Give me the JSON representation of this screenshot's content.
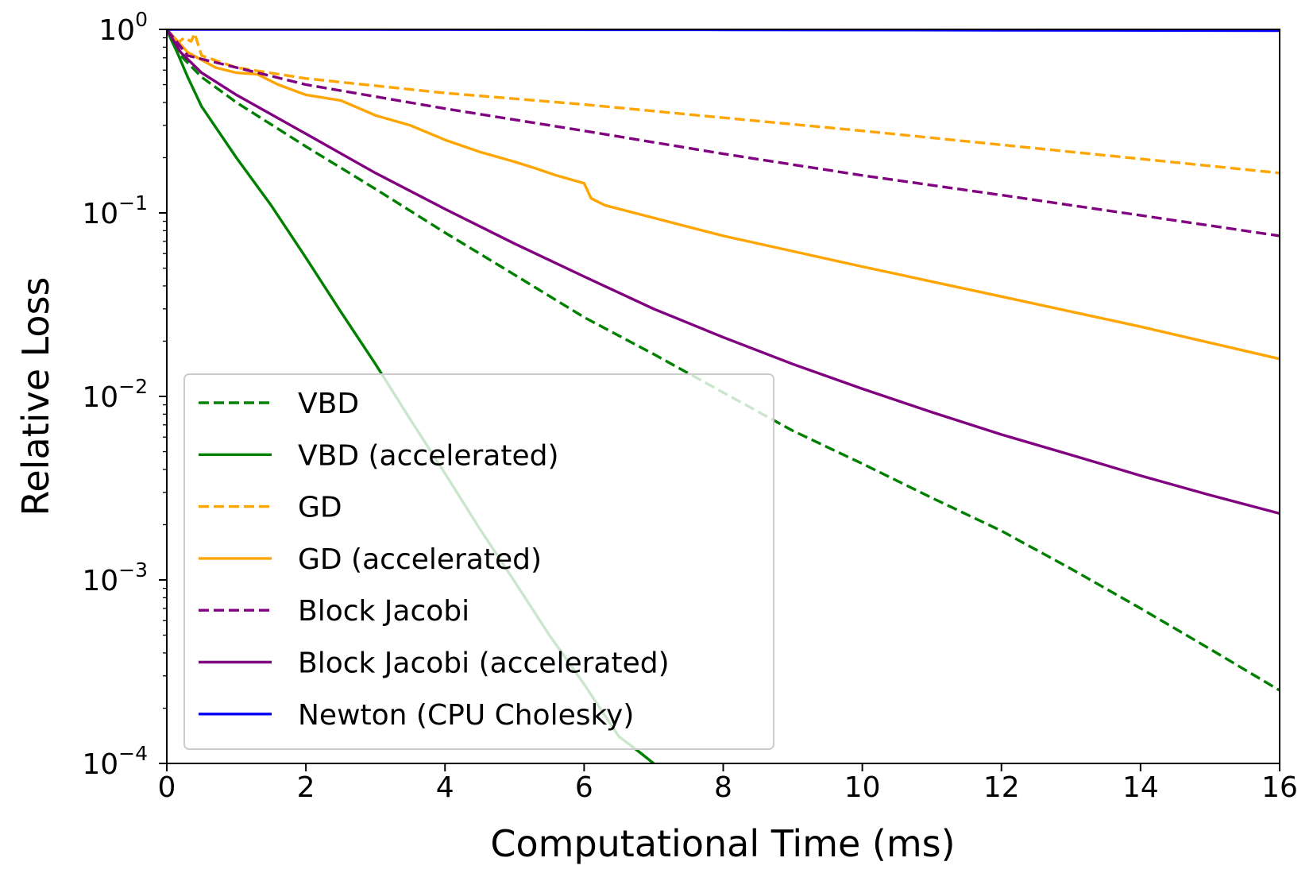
{
  "chart_data": {
    "type": "line",
    "title": "",
    "xlabel": "Computational Time (ms)",
    "ylabel": "Relative Loss",
    "xlim": [
      0,
      16
    ],
    "ylim": [
      0.0001,
      1
    ],
    "yscale": "log",
    "grid": false,
    "legend_position": "lower-left",
    "x_ticks": [
      {
        "value": 0,
        "label": "0"
      },
      {
        "value": 2,
        "label": "2"
      },
      {
        "value": 4,
        "label": "4"
      },
      {
        "value": 6,
        "label": "6"
      },
      {
        "value": 8,
        "label": "8"
      },
      {
        "value": 10,
        "label": "10"
      },
      {
        "value": 12,
        "label": "12"
      },
      {
        "value": 14,
        "label": "14"
      },
      {
        "value": 16,
        "label": "16"
      }
    ],
    "y_ticks": [
      {
        "exp": 0,
        "base": "10",
        "sup": "0"
      },
      {
        "exp": -1,
        "base": "10",
        "sup": "−1"
      },
      {
        "exp": -2,
        "base": "10",
        "sup": "−2"
      },
      {
        "exp": -3,
        "base": "10",
        "sup": "−3"
      },
      {
        "exp": -4,
        "base": "10",
        "sup": "−4"
      }
    ],
    "series": [
      {
        "name": "VBD",
        "color": "#008000",
        "dash": "dashed",
        "points": [
          [
            0,
            1
          ],
          [
            0.2,
            0.72
          ],
          [
            0.5,
            0.55
          ],
          [
            1,
            0.4
          ],
          [
            2,
            0.23
          ],
          [
            3,
            0.135
          ],
          [
            4,
            0.078
          ],
          [
            5,
            0.046
          ],
          [
            6,
            0.027
          ],
          [
            7,
            0.017
          ],
          [
            8,
            0.0105
          ],
          [
            9,
            0.0065
          ],
          [
            10,
            0.0043
          ],
          [
            11,
            0.0028
          ],
          [
            12,
            0.00185
          ],
          [
            13,
            0.00115
          ],
          [
            14,
            0.0007
          ],
          [
            15,
            0.00042
          ],
          [
            16,
            0.00025
          ]
        ]
      },
      {
        "name": "VBD (accelerated)",
        "color": "#008000",
        "dash": "solid",
        "points": [
          [
            0,
            1
          ],
          [
            0.05,
            0.9
          ],
          [
            0.15,
            0.75
          ],
          [
            0.3,
            0.55
          ],
          [
            0.5,
            0.38
          ],
          [
            1,
            0.2
          ],
          [
            1.5,
            0.11
          ],
          [
            2,
            0.057
          ],
          [
            2.5,
            0.029
          ],
          [
            3,
            0.015
          ],
          [
            3.5,
            0.0075
          ],
          [
            4,
            0.0038
          ],
          [
            4.5,
            0.0019
          ],
          [
            5,
            0.00098
          ],
          [
            5.5,
            0.0005
          ],
          [
            6,
            0.00027
          ],
          [
            6.5,
            0.00014
          ],
          [
            6.8,
            0.000115
          ],
          [
            7,
            0.0001
          ]
        ]
      },
      {
        "name": "GD",
        "color": "#FFA500",
        "dash": "dashed",
        "points": [
          [
            0,
            1
          ],
          [
            0.15,
            0.84
          ],
          [
            0.25,
            0.9
          ],
          [
            0.35,
            0.86
          ],
          [
            0.4,
            0.95
          ],
          [
            0.5,
            0.72
          ],
          [
            1,
            0.62
          ],
          [
            2,
            0.54
          ],
          [
            4,
            0.45
          ],
          [
            6,
            0.39
          ],
          [
            8,
            0.33
          ],
          [
            10,
            0.28
          ],
          [
            12,
            0.235
          ],
          [
            14,
            0.197
          ],
          [
            16,
            0.165
          ]
        ]
      },
      {
        "name": "GD (accelerated)",
        "color": "#FFA500",
        "dash": "solid",
        "points": [
          [
            0,
            1
          ],
          [
            0.3,
            0.75
          ],
          [
            0.7,
            0.62
          ],
          [
            1,
            0.58
          ],
          [
            1.3,
            0.57
          ],
          [
            1.6,
            0.5
          ],
          [
            2,
            0.44
          ],
          [
            2.5,
            0.41
          ],
          [
            3,
            0.34
          ],
          [
            3.5,
            0.3
          ],
          [
            4,
            0.25
          ],
          [
            4.5,
            0.215
          ],
          [
            5,
            0.19
          ],
          [
            5.3,
            0.175
          ],
          [
            5.6,
            0.16
          ],
          [
            6,
            0.145
          ],
          [
            6.1,
            0.12
          ],
          [
            6.3,
            0.11
          ],
          [
            8,
            0.075
          ],
          [
            10,
            0.051
          ],
          [
            12,
            0.035
          ],
          [
            14,
            0.024
          ],
          [
            16,
            0.016
          ]
        ]
      },
      {
        "name": "Block Jacobi",
        "color": "#800080",
        "dash": "dashed",
        "points": [
          [
            0,
            1
          ],
          [
            0.3,
            0.72
          ],
          [
            1,
            0.62
          ],
          [
            2,
            0.5
          ],
          [
            4,
            0.37
          ],
          [
            6,
            0.28
          ],
          [
            8,
            0.21
          ],
          [
            10,
            0.16
          ],
          [
            12,
            0.125
          ],
          [
            14,
            0.097
          ],
          [
            16,
            0.075
          ]
        ]
      },
      {
        "name": "Block Jacobi (accelerated)",
        "color": "#800080",
        "dash": "solid",
        "points": [
          [
            0,
            1
          ],
          [
            0.2,
            0.75
          ],
          [
            0.5,
            0.58
          ],
          [
            1,
            0.44
          ],
          [
            2,
            0.27
          ],
          [
            3,
            0.165
          ],
          [
            4,
            0.105
          ],
          [
            5,
            0.068
          ],
          [
            6,
            0.045
          ],
          [
            7,
            0.03
          ],
          [
            8,
            0.021
          ],
          [
            9,
            0.015
          ],
          [
            10,
            0.011
          ],
          [
            11,
            0.0082
          ],
          [
            12,
            0.0062
          ],
          [
            13,
            0.0048
          ],
          [
            14,
            0.0037
          ],
          [
            15,
            0.0029
          ],
          [
            16,
            0.0023
          ]
        ]
      },
      {
        "name": "Newton (CPU Cholesky)",
        "color": "#0000FF",
        "dash": "solid",
        "points": [
          [
            0,
            1
          ],
          [
            4,
            0.998
          ],
          [
            8,
            0.995
          ],
          [
            12,
            0.99
          ],
          [
            16,
            0.985
          ]
        ]
      }
    ]
  }
}
